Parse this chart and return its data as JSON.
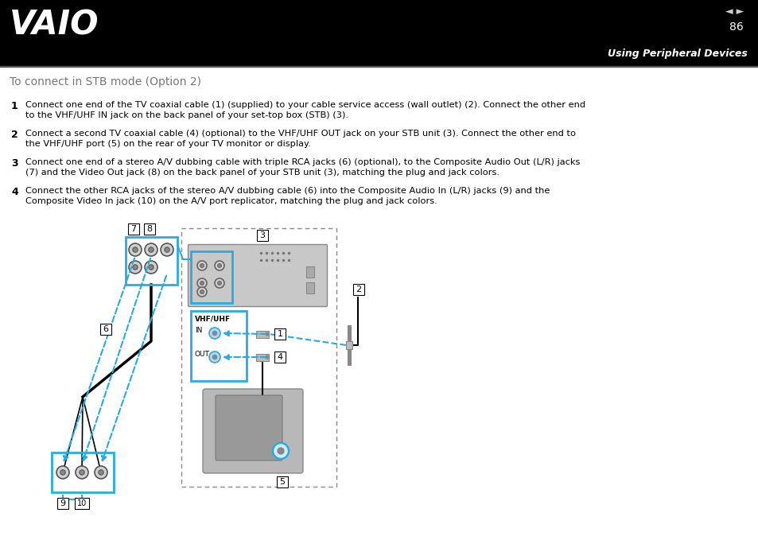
{
  "bg_color": "#ffffff",
  "header_bg": "#000000",
  "page_number": "86",
  "page_label": "Using Peripheral Devices",
  "section_title": "To connect in STB mode (Option 2)",
  "steps": [
    {
      "num": "1",
      "text": "Connect one end of the TV coaxial cable (1) (supplied) to your cable service access (wall outlet) (2). Connect the other end\nto the VHF/UHF IN jack on the back panel of your set-top box (STB) (3)."
    },
    {
      "num": "2",
      "text": "Connect a second TV coaxial cable (4) (optional) to the VHF/UHF OUT jack on your STB unit (3). Connect the other end to\nthe VHF/UHF port (5) on the rear of your TV monitor or display."
    },
    {
      "num": "3",
      "text": "Connect one end of a stereo A/V dubbing cable with triple RCA jacks (6) (optional), to the Composite Audio Out (L/R) jacks\n(7) and the Video Out jack (8) on the back panel of your STB unit (3), matching the plug and jack colors."
    },
    {
      "num": "4",
      "text": "Connect the other RCA jacks of the stereo A/V dubbing cable (6) into the Composite Audio In (L/R) jacks (9) and the\nComposite Video In jack (10) on the A/V port replicator, matching the plug and jack colors."
    }
  ],
  "blue": "#29ABE2",
  "black": "#000000",
  "dgray": "#888888",
  "lgray": "#cccccc",
  "mgray": "#aaaaaa"
}
